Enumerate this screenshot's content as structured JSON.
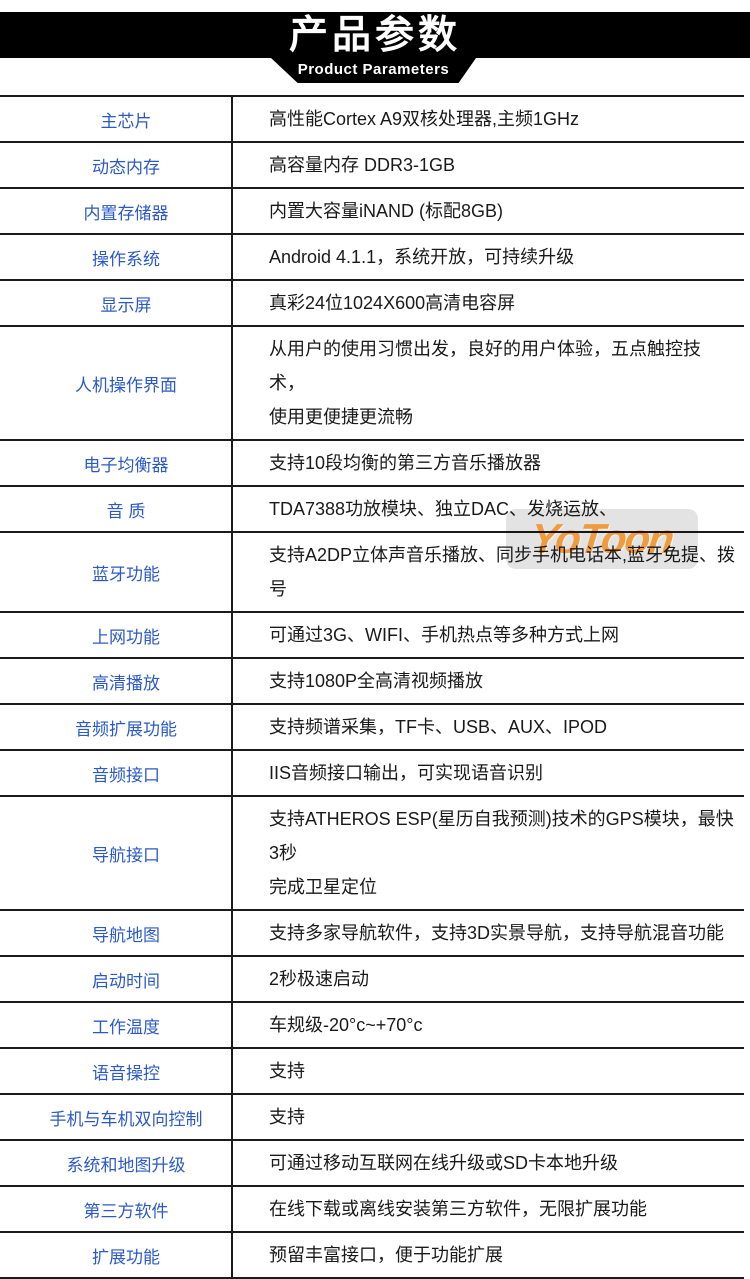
{
  "header": {
    "title": "产品参数",
    "subtitle": "Product Parameters"
  },
  "colors": {
    "header_bg": "#000000",
    "label_blue": "#2b5ac8",
    "value_black": "#1a1a1a",
    "border_dark": "#1b1b1b",
    "watermark_orange": "#ef9c3e",
    "watermark_bg": "#e3e3e3"
  },
  "watermark": {
    "text": "YoToon"
  },
  "table": {
    "rows": [
      {
        "label": "主芯片",
        "value": "高性能Cortex A9双核处理器,主频1GHz"
      },
      {
        "label": "动态内存",
        "value": "高容量内存 DDR3-1GB"
      },
      {
        "label": "内置存储器",
        "value": "内置大容量iNAND (标配8GB)"
      },
      {
        "label": "操作系统",
        "value": "Android 4.1.1，系统开放，可持续升级"
      },
      {
        "label": "显示屏",
        "value": "真彩24位1024X600高清电容屏"
      },
      {
        "label": "人机操作界面",
        "value": "从用户的使用习惯出发，良好的用户体验，五点触控技术，\n使用更便捷更流畅"
      },
      {
        "label": "电子均衡器",
        "value": "支持10段均衡的第三方音乐播放器"
      },
      {
        "label": "音 质",
        "value": "TDA7388功放模块、独立DAC、发烧运放、"
      },
      {
        "label": "蓝牙功能",
        "value": "支持A2DP立体声音乐播放、同步手机电话本,蓝牙免提、拨号"
      },
      {
        "label": "上网功能",
        "value": "可通过3G、WIFI、手机热点等多种方式上网"
      },
      {
        "label": "高清播放",
        "value": "支持1080P全高清视频播放"
      },
      {
        "label": "音频扩展功能",
        "value": "支持频谱采集，TF卡、USB、AUX、IPOD"
      },
      {
        "label": "音频接口",
        "value": "IIS音频接口输出，可实现语音识别"
      },
      {
        "label": "导航接口",
        "value": "支持ATHEROS ESP(星历自我预测)技术的GPS模块，最快3秒\n完成卫星定位"
      },
      {
        "label": "导航地图",
        "value": "支持多家导航软件，支持3D实景导航，支持导航混音功能"
      },
      {
        "label": "启动时间",
        "value": "2秒极速启动"
      },
      {
        "label": "工作温度",
        "value": "车规级-20°c~+70°c"
      },
      {
        "label": "语音操控",
        "value": "支持"
      },
      {
        "label": "手机与车机双向控制",
        "value": "支持"
      },
      {
        "label": "系统和地图升级",
        "value": "可通过移动互联网在线升级或SD卡本地升级"
      },
      {
        "label": "第三方软件",
        "value": "在线下载或离线安装第三方软件，无限扩展功能"
      },
      {
        "label": "扩展功能",
        "value": "预留丰富接口，便于功能扩展"
      }
    ]
  }
}
